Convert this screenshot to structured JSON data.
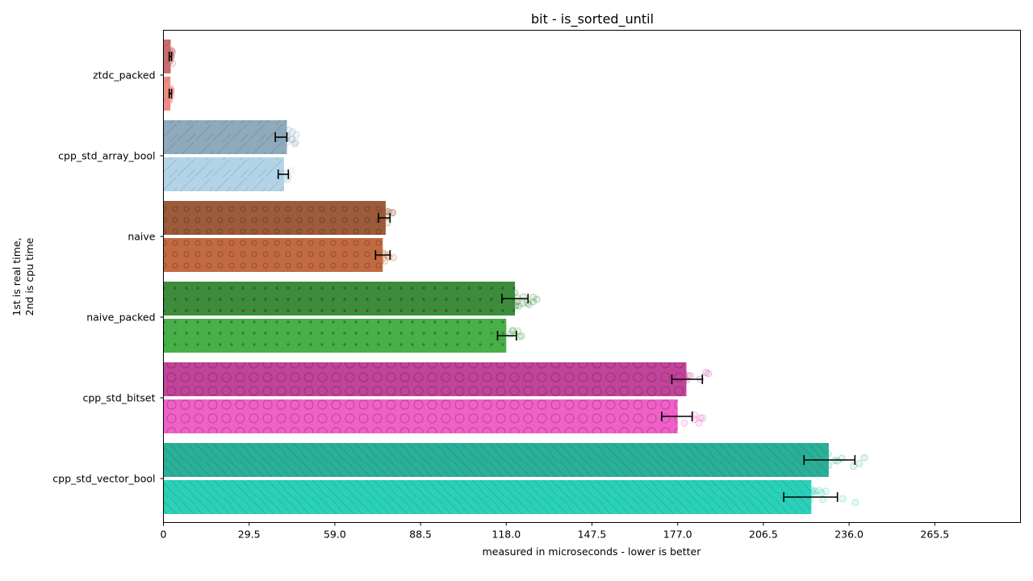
{
  "chart_data": {
    "type": "bar",
    "orientation": "horizontal",
    "title": "bit - is_sorted_until",
    "xlabel": "measured in microseconds - lower is better",
    "ylabel_lines": [
      "1st is real time,",
      "2nd is cpu time"
    ],
    "xlim": [
      0,
      295
    ],
    "xticks": [
      "0",
      "29.5",
      "59.0",
      "88.5",
      "118.0",
      "147.5",
      "177.0",
      "206.5",
      "236.0",
      "265.5"
    ],
    "categories": [
      "ztdc_packed",
      "cpp_std_array_bool",
      "naive",
      "naive_packed",
      "cpp_std_bitset",
      "cpp_std_vector_bool"
    ],
    "series": [
      {
        "name": "real time",
        "values": [
          2.5,
          42.5,
          76.5,
          121.0,
          180.0,
          229.0
        ],
        "err_low": [
          2.0,
          38.5,
          74.0,
          116.5,
          175.0,
          220.5
        ],
        "err_high": [
          2.8,
          42.5,
          78.0,
          125.5,
          185.5,
          238.0
        ]
      },
      {
        "name": "cpu time",
        "values": [
          2.4,
          41.5,
          75.5,
          118.0,
          177.0,
          223.0
        ],
        "err_low": [
          2.0,
          39.5,
          73.0,
          115.0,
          171.5,
          213.5
        ],
        "err_high": [
          2.8,
          43.0,
          78.0,
          121.5,
          182.0,
          232.0
        ]
      }
    ],
    "colors": {
      "real": [
        "#c96e6e",
        "#8fa9bd",
        "#9c5b3a",
        "#3c8c3c",
        "#c2449a",
        "#2aaf98"
      ],
      "cpu": [
        "#f08a85",
        "#b3d4e8",
        "#c26a42",
        "#48b048",
        "#f160c8",
        "#2bd0b8"
      ],
      "error_bar": "#000000"
    },
    "grid": false
  }
}
